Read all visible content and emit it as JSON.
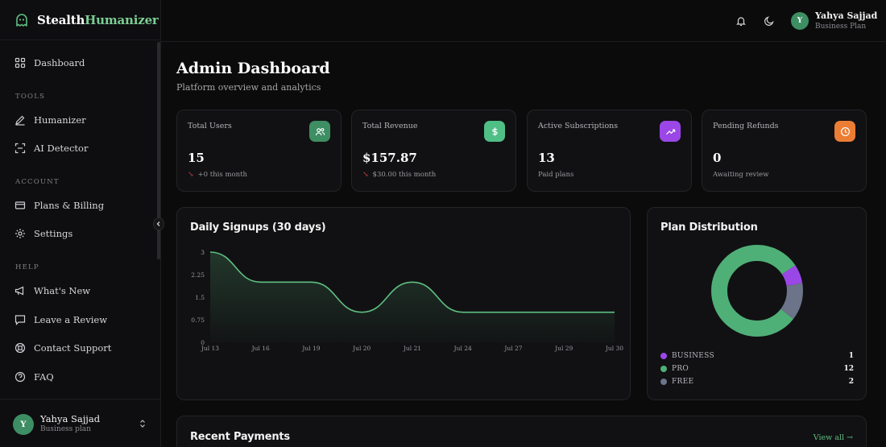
{
  "brand": {
    "part1": "Stealth",
    "part2": "Humanizer"
  },
  "sidebar": {
    "items": [
      {
        "label": "Dashboard",
        "icon": "dashboard-grid-icon"
      },
      {
        "label": "Humanizer",
        "icon": "pen-icon"
      },
      {
        "label": "AI Detector",
        "icon": "scan-icon"
      },
      {
        "label": "Plans & Billing",
        "icon": "credit-card-icon"
      },
      {
        "label": "Settings",
        "icon": "gear-icon"
      },
      {
        "label": "What's New",
        "icon": "megaphone-icon"
      },
      {
        "label": "Leave a Review",
        "icon": "message-icon"
      },
      {
        "label": "Contact Support",
        "icon": "lifebuoy-icon"
      },
      {
        "label": "FAQ",
        "icon": "help-circle-icon"
      }
    ],
    "sections": {
      "tools": "TOOLS",
      "account": "ACCOUNT",
      "help": "HELP"
    },
    "footer": {
      "initial": "Y",
      "name": "Yahya Sajjad",
      "plan": "Business plan"
    }
  },
  "topbar": {
    "initial": "Y",
    "name": "Yahya Sajjad",
    "plan": "Business Plan"
  },
  "page": {
    "title": "Admin Dashboard",
    "subtitle": "Platform overview and analytics"
  },
  "stats": [
    {
      "title": "Total Users",
      "value": "15",
      "arrow": "↘",
      "note": "+0 this month",
      "icon": "users-icon",
      "color": "#3e8e63"
    },
    {
      "title": "Total Revenue",
      "value": "$157.87",
      "arrow": "↘",
      "note": "$30.00 this month",
      "icon": "dollar-icon",
      "color": "#4fbf85"
    },
    {
      "title": "Active Subscriptions",
      "value": "13",
      "note": "Paid plans",
      "icon": "trending-up-icon",
      "color": "#9b47e8"
    },
    {
      "title": "Pending Refunds",
      "value": "0",
      "note": "Awaiting review",
      "icon": "clock-icon",
      "color": "#ec7d35"
    }
  ],
  "signups": {
    "title": "Daily Signups (30 days)"
  },
  "distribution": {
    "title": "Plan Distribution"
  },
  "payments": {
    "title": "Recent Payments",
    "view_all": "View all →"
  },
  "chart_data": [
    {
      "type": "area",
      "title": "Daily Signups (30 days)",
      "x_ticks": [
        "Jul 13",
        "Jul 16",
        "Jul 19",
        "Jul 20",
        "Jul 21",
        "Jul 24",
        "Jul 27",
        "Jul 29",
        "Jul 30"
      ],
      "y_ticks": [
        "0",
        "0.75",
        "1.5",
        "2.25",
        "3"
      ],
      "ylim": [
        0,
        3
      ],
      "series": [
        {
          "values": [
            3,
            2,
            2,
            1,
            2,
            1,
            1,
            1,
            1
          ]
        }
      ],
      "color": "#5fbf82",
      "grid": false
    },
    {
      "type": "pie",
      "title": "Plan Distribution",
      "donut": true,
      "slices": [
        {
          "label": "BUSINESS",
          "value": 1,
          "color": "#9b47e8"
        },
        {
          "label": "PRO",
          "value": 12,
          "color": "#4fb077"
        },
        {
          "label": "FREE",
          "value": 2,
          "color": "#6b7488"
        }
      ]
    }
  ]
}
